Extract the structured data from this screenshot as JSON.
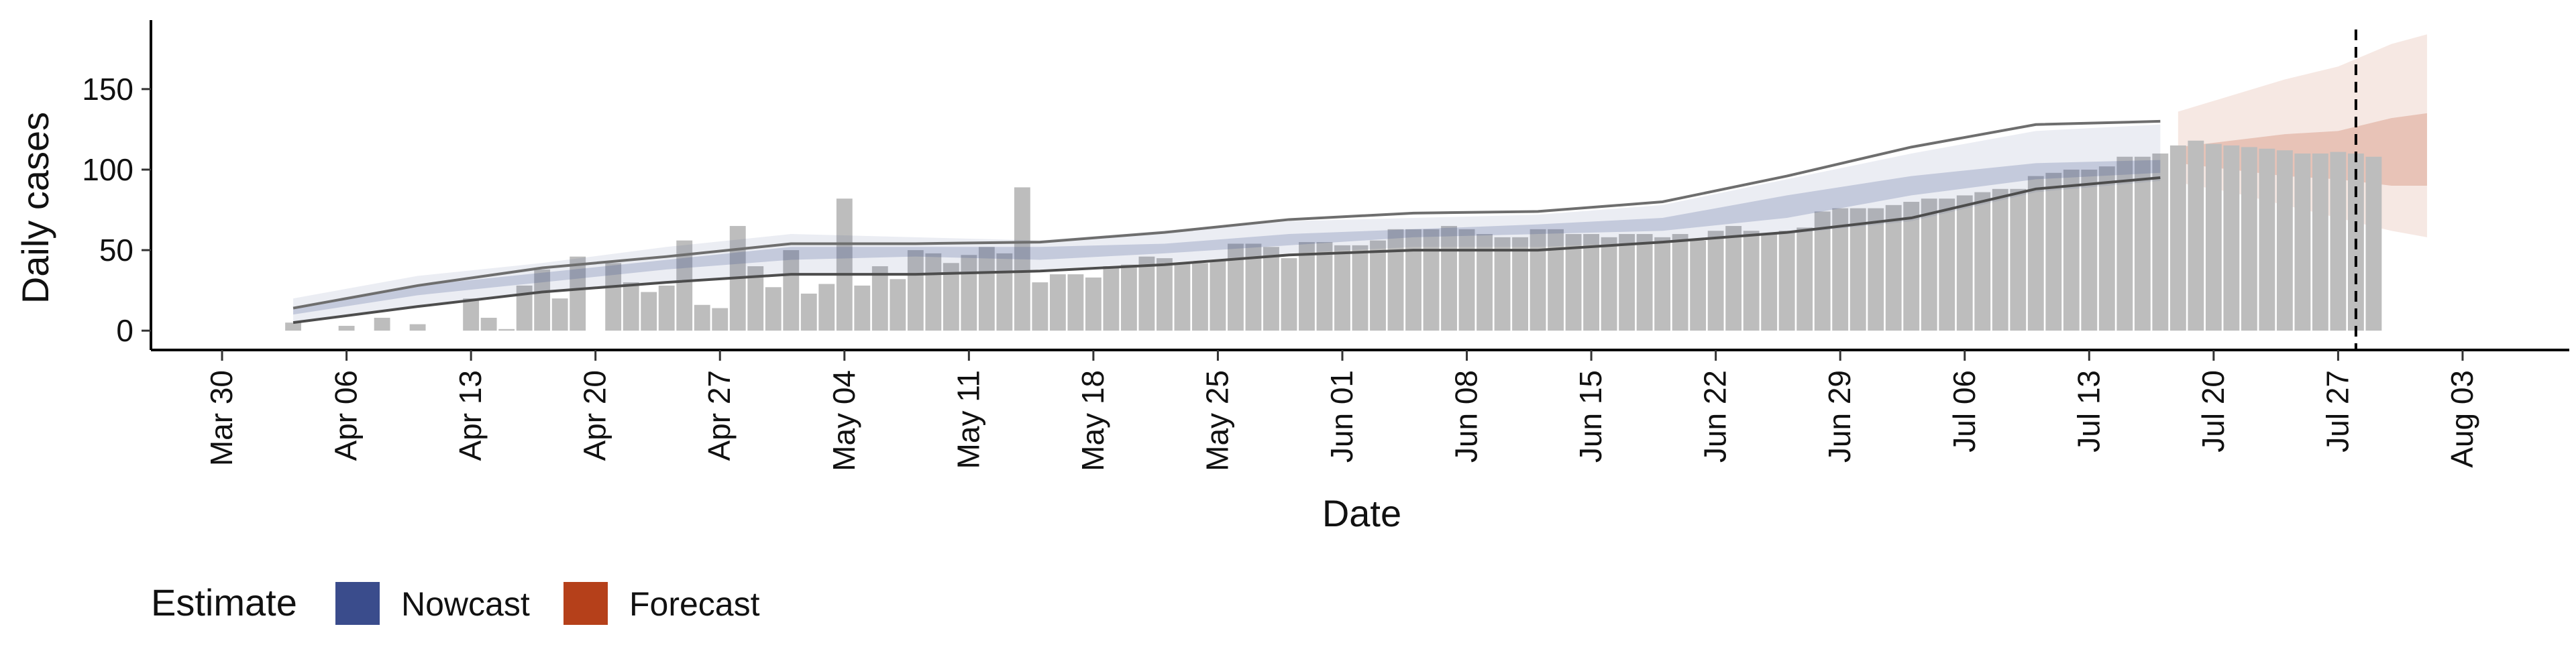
{
  "chart_data": {
    "type": "bar",
    "xlabel": "Date",
    "ylabel": "Daily cases",
    "ylim": [
      -12,
      192
    ],
    "yticks": [
      0,
      50,
      100,
      150
    ],
    "xlim": [
      "2020-03-26",
      "2020-08-09"
    ],
    "xtick_dates": [
      "2020-03-30",
      "2020-04-06",
      "2020-04-13",
      "2020-04-20",
      "2020-04-27",
      "2020-05-04",
      "2020-05-11",
      "2020-05-18",
      "2020-05-25",
      "2020-06-01",
      "2020-06-08",
      "2020-06-15",
      "2020-06-22",
      "2020-06-29",
      "2020-07-06",
      "2020-07-13",
      "2020-07-20",
      "2020-07-27",
      "2020-08-03"
    ],
    "xtick_labels": [
      "Mar 30",
      "Apr 06",
      "Apr 13",
      "Apr 20",
      "Apr 27",
      "May 04",
      "May 11",
      "May 18",
      "May 25",
      "Jun 01",
      "Jun 08",
      "Jun 15",
      "Jun 22",
      "Jun 29",
      "Jul 06",
      "Jul 13",
      "Jul 20",
      "Jul 27",
      "Aug 03"
    ],
    "reported_cases": {
      "start_date": "2020-04-03",
      "values": [
        5,
        0,
        0,
        3,
        0,
        8,
        0,
        4,
        0,
        0,
        20,
        8,
        1,
        28,
        38,
        20,
        46,
        0,
        42,
        30,
        24,
        28,
        56,
        16,
        14,
        65,
        40,
        27,
        50,
        23,
        29,
        82,
        28,
        40,
        32,
        50,
        48,
        42,
        47,
        52,
        48,
        89,
        30,
        35,
        35,
        33,
        40,
        41,
        46,
        45,
        42,
        42,
        44,
        54,
        54,
        52,
        45,
        55,
        55,
        53,
        53,
        56,
        63,
        63,
        63,
        65,
        63,
        60,
        58,
        58,
        63,
        63,
        60,
        60,
        58,
        60,
        60,
        58,
        60,
        56,
        62,
        65,
        62,
        60,
        62,
        64,
        74,
        76,
        76,
        76,
        78,
        80,
        82,
        82,
        84,
        86,
        88,
        88,
        96,
        98,
        100,
        100,
        102,
        108,
        108,
        110,
        115,
        118,
        116,
        115,
        114,
        113,
        112,
        110,
        110,
        111,
        110,
        108
      ]
    },
    "dashed_vline_date": "2020-07-28",
    "series": [
      {
        "name": "Nowcast",
        "color": "#3a4c8c",
        "dates": [
          "2020-04-03",
          "2020-04-10",
          "2020-04-17",
          "2020-04-24",
          "2020-05-01",
          "2020-05-08",
          "2020-05-15",
          "2020-05-22",
          "2020-05-29",
          "2020-06-05",
          "2020-06-12",
          "2020-06-19",
          "2020-06-26",
          "2020-07-03",
          "2020-07-10",
          "2020-07-17"
        ],
        "inner_lower": [
          10,
          22,
          30,
          38,
          44,
          46,
          44,
          48,
          53,
          58,
          60,
          62,
          70,
          84,
          94,
          98
        ],
        "inner_upper": [
          14,
          28,
          36,
          44,
          52,
          52,
          52,
          54,
          60,
          63,
          66,
          70,
          84,
          96,
          104,
          106
        ],
        "outer_lower": [
          5,
          15,
          24,
          29,
          35,
          35,
          38,
          42,
          48,
          52,
          52,
          55,
          60,
          68,
          86,
          93
        ],
        "outer_upper": [
          20,
          34,
          42,
          52,
          60,
          58,
          56,
          62,
          68,
          70,
          72,
          78,
          94,
          110,
          124,
          128
        ],
        "line_lower": [
          5,
          15,
          24,
          30,
          35,
          35,
          37,
          41,
          47,
          50,
          50,
          55,
          61,
          70,
          88,
          95
        ],
        "line_upper": [
          14,
          28,
          39,
          46,
          54,
          54,
          55,
          61,
          69,
          73,
          74,
          80,
          96,
          114,
          128,
          130
        ]
      },
      {
        "name": "Forecast",
        "color": "#b5401a",
        "dates": [
          "2020-07-18",
          "2020-07-21",
          "2020-07-24",
          "2020-07-27",
          "2020-07-30",
          "2020-08-01"
        ],
        "inner_lower": [
          104,
          100,
          96,
          94,
          90,
          90
        ],
        "inner_upper": [
          114,
          118,
          122,
          124,
          132,
          135
        ],
        "outer_lower": [
          92,
          86,
          78,
          70,
          62,
          58
        ],
        "outer_upper": [
          136,
          146,
          156,
          164,
          178,
          184
        ]
      }
    ],
    "legend": {
      "title": "Estimate",
      "position": "bottom-left",
      "items": [
        {
          "label": "Nowcast",
          "color": "#3a4c8c"
        },
        {
          "label": "Forecast",
          "color": "#b5401a"
        }
      ]
    }
  }
}
